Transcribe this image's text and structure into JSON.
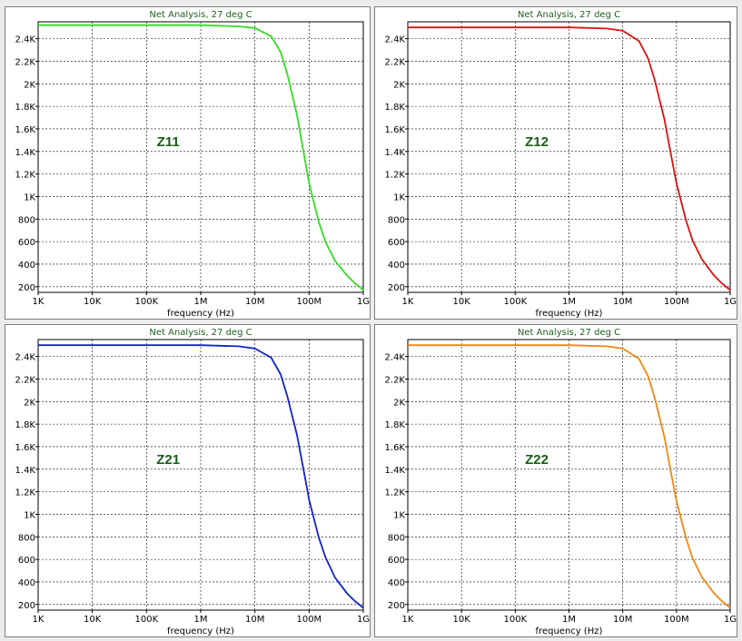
{
  "chart_data": [
    {
      "type": "line",
      "title": "Net Analysis, 27 deg C",
      "xlabel": "frequency (Hz)",
      "ylabel": "",
      "xscale": "log",
      "xlim": [
        1000,
        1000000000
      ],
      "ylim": [
        150,
        2550
      ],
      "xticks": [
        "1K",
        "10K",
        "100K",
        "1M",
        "10M",
        "100M",
        "1G"
      ],
      "yticks": [
        "200",
        "400",
        "600",
        "800",
        "1K",
        "1.2K",
        "1.4K",
        "1.6K",
        "1.8K",
        "2K",
        "2.2K",
        "2.4K"
      ],
      "grid": true,
      "annotation": "Z11",
      "color": "#33dd22",
      "series": [
        {
          "x": [
            1000,
            10000,
            100000,
            1000000,
            5000000,
            10000000,
            20000000,
            30000000,
            40000000,
            60000000,
            80000000,
            100000000,
            150000000,
            200000000,
            300000000,
            500000000,
            700000000,
            1000000000
          ],
          "y": [
            2520,
            2520,
            2520,
            2520,
            2510,
            2495,
            2420,
            2280,
            2080,
            1720,
            1380,
            1120,
            780,
            600,
            430,
            300,
            230,
            170
          ]
        }
      ]
    },
    {
      "type": "line",
      "title": "Net Analysis, 27 deg C",
      "xlabel": "frequency (Hz)",
      "ylabel": "",
      "xscale": "log",
      "xlim": [
        1000,
        1000000000
      ],
      "ylim": [
        150,
        2550
      ],
      "xticks": [
        "1K",
        "10K",
        "100K",
        "1M",
        "10M",
        "100M",
        "1G"
      ],
      "yticks": [
        "200",
        "400",
        "600",
        "800",
        "1K",
        "1.2K",
        "1.4K",
        "1.6K",
        "1.8K",
        "2K",
        "2.2K",
        "2.4K"
      ],
      "grid": true,
      "annotation": "Z12",
      "color": "#dd1111",
      "series": [
        {
          "x": [
            1000,
            10000,
            100000,
            1000000,
            5000000,
            10000000,
            20000000,
            30000000,
            40000000,
            60000000,
            80000000,
            100000000,
            150000000,
            200000000,
            300000000,
            500000000,
            700000000,
            1000000000
          ],
          "y": [
            2500,
            2500,
            2500,
            2500,
            2490,
            2470,
            2380,
            2220,
            2020,
            1680,
            1360,
            1120,
            790,
            610,
            440,
            300,
            230,
            170
          ]
        }
      ]
    },
    {
      "type": "line",
      "title": "Net Analysis, 27 deg C",
      "xlabel": "frequency (Hz)",
      "ylabel": "",
      "xscale": "log",
      "xlim": [
        1000,
        1000000000
      ],
      "ylim": [
        150,
        2550
      ],
      "xticks": [
        "1K",
        "10K",
        "100K",
        "1M",
        "10M",
        "100M",
        "1G"
      ],
      "yticks": [
        "200",
        "400",
        "600",
        "800",
        "1K",
        "1.2K",
        "1.4K",
        "1.6K",
        "1.8K",
        "2K",
        "2.2K",
        "2.4K"
      ],
      "grid": true,
      "annotation": "Z21",
      "color": "#1122cc",
      "series": [
        {
          "x": [
            1000,
            10000,
            100000,
            1000000,
            5000000,
            10000000,
            20000000,
            30000000,
            40000000,
            60000000,
            80000000,
            100000000,
            150000000,
            200000000,
            300000000,
            500000000,
            700000000,
            1000000000
          ],
          "y": [
            2500,
            2500,
            2500,
            2500,
            2490,
            2470,
            2390,
            2240,
            2040,
            1700,
            1380,
            1130,
            800,
            620,
            440,
            300,
            230,
            170
          ]
        }
      ]
    },
    {
      "type": "line",
      "title": "Net Analysis, 27 deg C",
      "xlabel": "frequency (Hz)",
      "ylabel": "",
      "xscale": "log",
      "xlim": [
        1000,
        1000000000
      ],
      "ylim": [
        150,
        2550
      ],
      "xticks": [
        "1K",
        "10K",
        "100K",
        "1M",
        "10M",
        "100M",
        "1G"
      ],
      "yticks": [
        "200",
        "400",
        "600",
        "800",
        "1K",
        "1.2K",
        "1.4K",
        "1.6K",
        "1.8K",
        "2K",
        "2.2K",
        "2.4K"
      ],
      "grid": true,
      "annotation": "Z22",
      "color": "#ee8811",
      "series": [
        {
          "x": [
            1000,
            10000,
            100000,
            1000000,
            5000000,
            10000000,
            20000000,
            30000000,
            40000000,
            60000000,
            80000000,
            100000000,
            150000000,
            200000000,
            300000000,
            500000000,
            700000000,
            1000000000
          ],
          "y": [
            2500,
            2500,
            2500,
            2500,
            2490,
            2470,
            2380,
            2220,
            2020,
            1680,
            1360,
            1120,
            790,
            610,
            440,
            300,
            230,
            170
          ]
        }
      ]
    }
  ]
}
